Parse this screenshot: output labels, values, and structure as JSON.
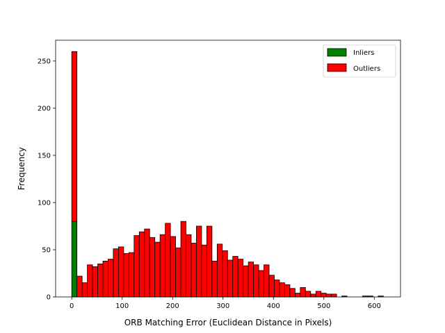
{
  "chart_data": {
    "type": "bar",
    "title": "",
    "xlabel": "ORB Matching Error (Euclidean Distance in Pixels)",
    "ylabel": "Frequency",
    "xlim": [
      -32,
      652
    ],
    "ylim": [
      0,
      272
    ],
    "bin_width": 10.3,
    "x_ticks": [
      0,
      100,
      200,
      300,
      400,
      500,
      600
    ],
    "y_ticks": [
      0,
      50,
      100,
      150,
      200,
      250
    ],
    "grid": false,
    "legend_position": "top-right",
    "series": [
      {
        "name": "Inliers",
        "color": "#008000",
        "bins": [
          {
            "x0": 0,
            "value": 80
          }
        ]
      },
      {
        "name": "Outliers",
        "color": "#ff0000",
        "bins": [
          {
            "x0": 0,
            "value": 180
          },
          {
            "x0": 10.3,
            "value": 22
          },
          {
            "x0": 20.6,
            "value": 15
          },
          {
            "x0": 30.9,
            "value": 34
          },
          {
            "x0": 41.2,
            "value": 32
          },
          {
            "x0": 51.5,
            "value": 35
          },
          {
            "x0": 61.8,
            "value": 38
          },
          {
            "x0": 72.1,
            "value": 40
          },
          {
            "x0": 82.4,
            "value": 51
          },
          {
            "x0": 92.7,
            "value": 53
          },
          {
            "x0": 103,
            "value": 46
          },
          {
            "x0": 113.3,
            "value": 47
          },
          {
            "x0": 123.6,
            "value": 65
          },
          {
            "x0": 133.9,
            "value": 69
          },
          {
            "x0": 144.2,
            "value": 72
          },
          {
            "x0": 154.5,
            "value": 63
          },
          {
            "x0": 164.8,
            "value": 58
          },
          {
            "x0": 175.1,
            "value": 66
          },
          {
            "x0": 185.4,
            "value": 78
          },
          {
            "x0": 195.7,
            "value": 64
          },
          {
            "x0": 206,
            "value": 52
          },
          {
            "x0": 216.3,
            "value": 80
          },
          {
            "x0": 226.6,
            "value": 66
          },
          {
            "x0": 236.9,
            "value": 57
          },
          {
            "x0": 247.2,
            "value": 75
          },
          {
            "x0": 257.5,
            "value": 55
          },
          {
            "x0": 267.8,
            "value": 75
          },
          {
            "x0": 278.1,
            "value": 38
          },
          {
            "x0": 288.4,
            "value": 56
          },
          {
            "x0": 298.7,
            "value": 49
          },
          {
            "x0": 309,
            "value": 39
          },
          {
            "x0": 319.3,
            "value": 43
          },
          {
            "x0": 329.6,
            "value": 40
          },
          {
            "x0": 339.9,
            "value": 33
          },
          {
            "x0": 350.2,
            "value": 37
          },
          {
            "x0": 360.5,
            "value": 34
          },
          {
            "x0": 370.8,
            "value": 28
          },
          {
            "x0": 381.1,
            "value": 34
          },
          {
            "x0": 391.4,
            "value": 23
          },
          {
            "x0": 401.7,
            "value": 18
          },
          {
            "x0": 412,
            "value": 15
          },
          {
            "x0": 422.3,
            "value": 13
          },
          {
            "x0": 432.6,
            "value": 9
          },
          {
            "x0": 442.9,
            "value": 4
          },
          {
            "x0": 453.2,
            "value": 10
          },
          {
            "x0": 463.5,
            "value": 6
          },
          {
            "x0": 473.8,
            "value": 3
          },
          {
            "x0": 484.1,
            "value": 6
          },
          {
            "x0": 494.4,
            "value": 4
          },
          {
            "x0": 504.7,
            "value": 3
          },
          {
            "x0": 515,
            "value": 3
          },
          {
            "x0": 525.3,
            "value": 0
          },
          {
            "x0": 535.6,
            "value": 1
          },
          {
            "x0": 545.9,
            "value": 0
          },
          {
            "x0": 556.2,
            "value": 0
          },
          {
            "x0": 566.5,
            "value": 0
          },
          {
            "x0": 576.8,
            "value": 1
          },
          {
            "x0": 587.1,
            "value": 1
          },
          {
            "x0": 597.4,
            "value": 0
          },
          {
            "x0": 607.7,
            "value": 1
          }
        ]
      }
    ]
  }
}
